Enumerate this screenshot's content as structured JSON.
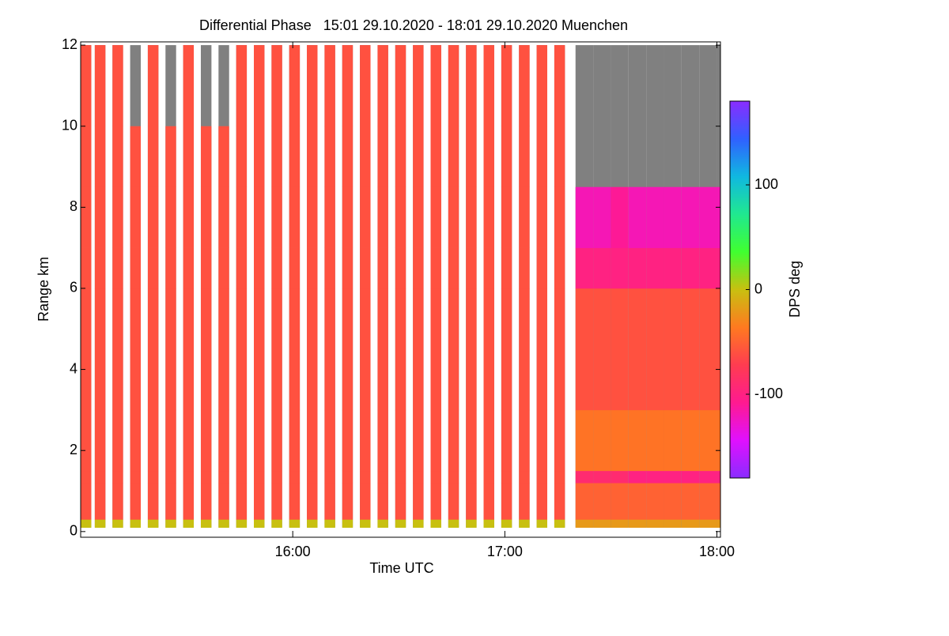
{
  "chart_data": {
    "type": "heatmap",
    "title": "Differential Phase   15:01 29.10.2020 - 18:01 29.10.2020 Muenchen",
    "xlabel": "Time UTC",
    "ylabel": "Range km",
    "colorbar_label": "DPS deg",
    "xlim": [
      0,
      181
    ],
    "xticks": [
      {
        "value": 60,
        "label": "16:00"
      },
      {
        "value": 120,
        "label": "17:00"
      },
      {
        "value": 180,
        "label": "18:00"
      }
    ],
    "ylim": [
      -0.14,
      12.08
    ],
    "yticks": [
      0,
      2,
      4,
      6,
      8,
      10,
      12
    ],
    "clim": [
      -180,
      180
    ],
    "cticks": [
      -100,
      0,
      100
    ],
    "colormap": [
      "#8a2cff",
      "#e010ff",
      "#ff1a90",
      "#ff3c50",
      "#ff7a20",
      "#c8c010",
      "#40ff30",
      "#20e890",
      "#10b8e0",
      "#3060ff",
      "#8a2cff"
    ],
    "missing_color": "#808080",
    "x_start": [
      0,
      4,
      9,
      14,
      19,
      24,
      29,
      34,
      39,
      44,
      49,
      54,
      59,
      64,
      69,
      74,
      79,
      84,
      89,
      94,
      99,
      104,
      109,
      114,
      119,
      124,
      129,
      134,
      140,
      145,
      150,
      155,
      160,
      165,
      170,
      175,
      180
    ],
    "x_end": [
      3,
      7,
      12,
      17,
      22,
      27,
      32,
      37,
      42,
      47,
      52,
      57,
      62,
      67,
      72,
      77,
      82,
      87,
      92,
      97,
      102,
      107,
      112,
      117,
      122,
      127,
      132,
      137,
      145,
      150,
      155,
      160,
      165,
      170,
      175,
      180,
      181
    ],
    "y_bins": [
      0.1,
      0.3,
      1.2,
      1.5,
      3,
      6,
      7,
      8.5,
      10,
      12
    ],
    "values": [
      [
        0,
        -60,
        -60,
        -60,
        -60,
        -60,
        -60,
        -60,
        -60
      ],
      [
        0,
        -60,
        -60,
        -60,
        -60,
        -60,
        -60,
        -60,
        -60
      ],
      [
        0,
        -60,
        -60,
        -60,
        -60,
        -60,
        -60,
        -60,
        -60
      ],
      [
        0,
        -60,
        -60,
        -60,
        -60,
        -60,
        -60,
        -60,
        null
      ],
      [
        0,
        -60,
        -60,
        -60,
        -60,
        -60,
        -60,
        -60,
        -60
      ],
      [
        0,
        -60,
        -60,
        -60,
        -60,
        -60,
        -60,
        -60,
        null
      ],
      [
        0,
        -60,
        -60,
        -60,
        -60,
        -60,
        -60,
        -60,
        -60
      ],
      [
        0,
        -60,
        -60,
        -60,
        -60,
        -60,
        -60,
        -60,
        null
      ],
      [
        0,
        -60,
        -60,
        -60,
        -60,
        -60,
        -60,
        -60,
        null
      ],
      [
        0,
        -60,
        -60,
        -60,
        -60,
        -60,
        -60,
        -60,
        -60
      ],
      [
        0,
        -60,
        -60,
        -60,
        -60,
        -60,
        -60,
        -60,
        -60
      ],
      [
        0,
        -60,
        -60,
        -60,
        -60,
        -60,
        -60,
        -60,
        -60
      ],
      [
        0,
        -60,
        -60,
        -60,
        -60,
        -60,
        -60,
        -60,
        -60
      ],
      [
        0,
        -60,
        -60,
        -60,
        -60,
        -60,
        -60,
        -60,
        -60
      ],
      [
        0,
        -60,
        -60,
        -60,
        -60,
        -60,
        -60,
        -60,
        -60
      ],
      [
        0,
        -60,
        -60,
        -60,
        -60,
        -60,
        -60,
        -60,
        -60
      ],
      [
        0,
        -60,
        -60,
        -60,
        -60,
        -60,
        -60,
        -60,
        -60
      ],
      [
        0,
        -60,
        -60,
        -60,
        -60,
        -60,
        -60,
        -60,
        -60
      ],
      [
        0,
        -60,
        -60,
        -60,
        -60,
        -60,
        -60,
        -60,
        -60
      ],
      [
        0,
        -60,
        -60,
        -60,
        -60,
        -60,
        -60,
        -60,
        -60
      ],
      [
        0,
        -60,
        -60,
        -60,
        -60,
        -60,
        -60,
        -60,
        -60
      ],
      [
        0,
        -60,
        -60,
        -60,
        -60,
        -60,
        -60,
        -60,
        -60
      ],
      [
        0,
        -60,
        -60,
        -60,
        -60,
        -60,
        -60,
        -60,
        -60
      ],
      [
        0,
        -60,
        -60,
        -60,
        -60,
        -60,
        -60,
        -60,
        -60
      ],
      [
        0,
        -60,
        -60,
        -60,
        -60,
        -60,
        -60,
        -60,
        -60
      ],
      [
        0,
        -60,
        -60,
        -60,
        -60,
        -60,
        -60,
        -60,
        -60
      ],
      [
        0,
        -60,
        -60,
        -60,
        -60,
        -60,
        -60,
        -60,
        -60
      ],
      [
        0,
        -60,
        -60,
        -60,
        -60,
        -60,
        -60,
        -60,
        -60
      ],
      [
        -20,
        -50,
        -90,
        -40,
        -60,
        -100,
        -120,
        null,
        null
      ],
      [
        -20,
        -50,
        -90,
        -40,
        -60,
        -100,
        -120,
        null,
        null
      ],
      [
        -20,
        -50,
        -90,
        -40,
        -60,
        -100,
        -110,
        null,
        null
      ],
      [
        -20,
        -50,
        -100,
        -40,
        -60,
        -100,
        -120,
        null,
        null
      ],
      [
        -20,
        -50,
        -100,
        -40,
        -60,
        -100,
        -120,
        null,
        null
      ],
      [
        -20,
        -50,
        -100,
        -40,
        -60,
        -100,
        -120,
        null,
        null
      ],
      [
        -20,
        -50,
        -100,
        -40,
        -60,
        -100,
        -120,
        null,
        null
      ],
      [
        -20,
        -50,
        -100,
        -40,
        -60,
        -100,
        -120,
        null,
        null
      ],
      [
        -20,
        -50,
        -100,
        -40,
        -60,
        -100,
        -120,
        null,
        null
      ]
    ]
  }
}
